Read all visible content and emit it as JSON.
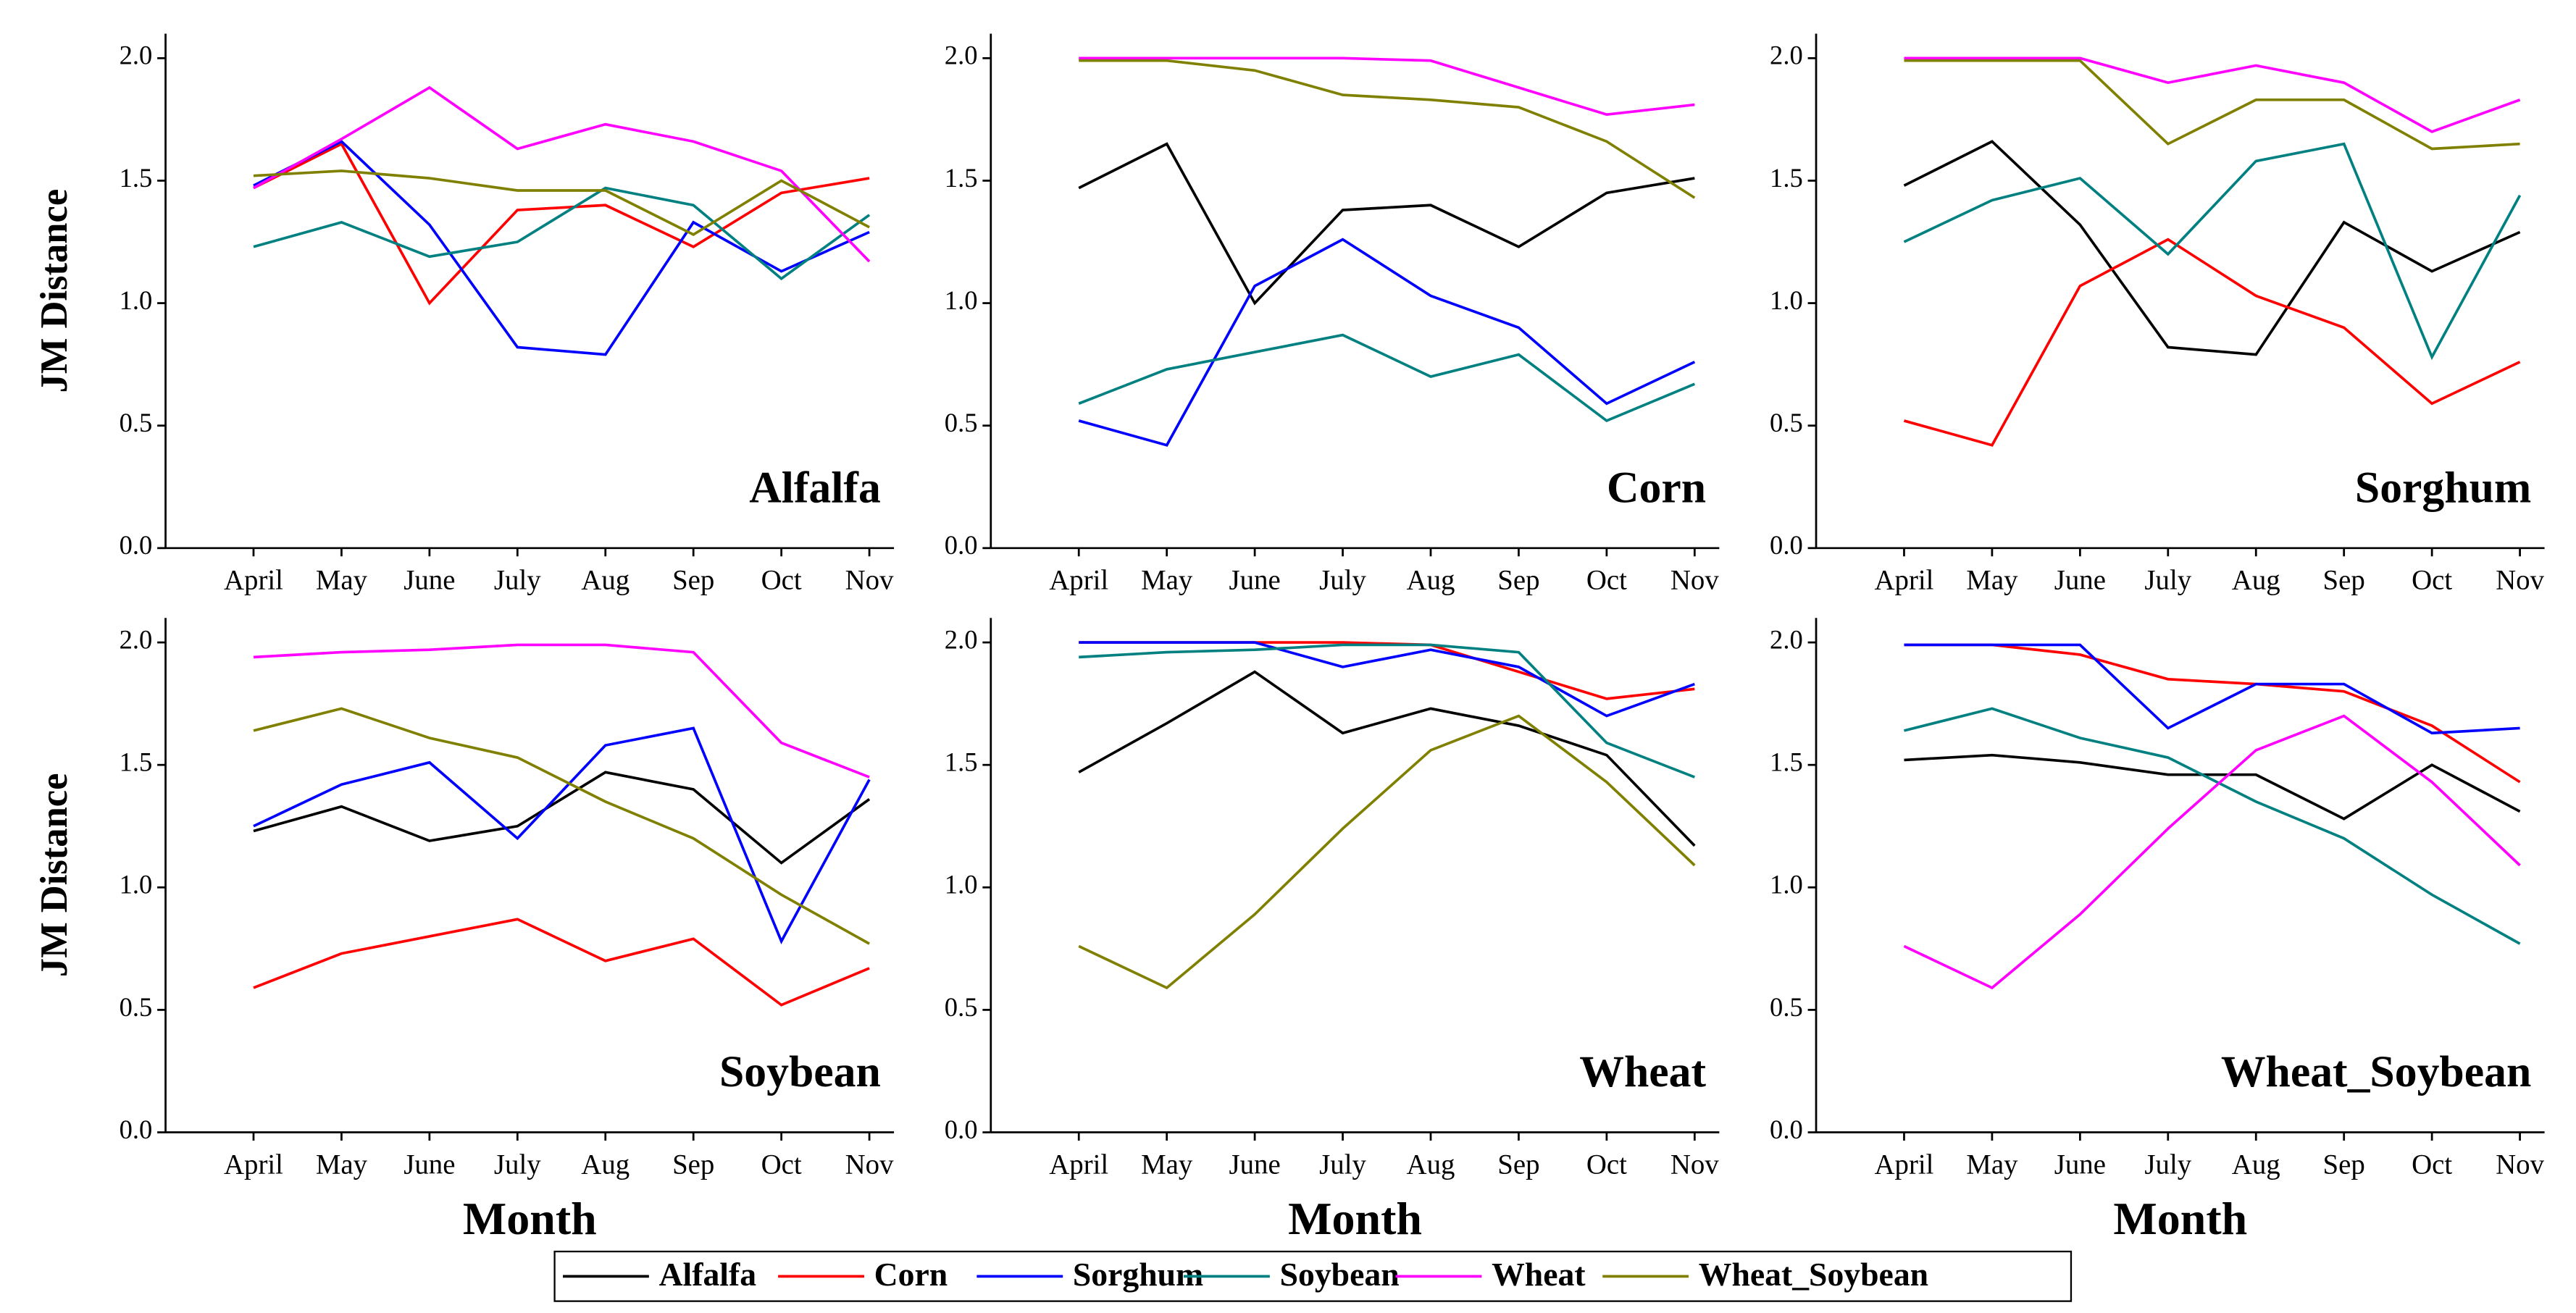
{
  "chart_data": [
    {
      "type": "line",
      "title": "Alfalfa",
      "ylabel": "JM Distance",
      "categories": [
        "April",
        "May",
        "June",
        "July",
        "Aug",
        "Sep",
        "Oct",
        "Nov"
      ],
      "ylim": [
        0,
        2.1
      ],
      "yticks": [
        {
          "value": 0,
          "label": "0.0"
        },
        {
          "value": 0.5,
          "label": "0.5"
        },
        {
          "value": 1,
          "label": "1.0"
        },
        {
          "value": 1.5,
          "label": "1.5"
        },
        {
          "value": 2,
          "label": "2.0"
        }
      ],
      "series": [
        {
          "name": "Corn",
          "color": "#ff0000",
          "values": [
            1.47,
            1.65,
            1.0,
            1.38,
            1.4,
            1.23,
            1.45,
            1.51
          ]
        },
        {
          "name": "Sorghum",
          "color": "#0000ff",
          "values": [
            1.48,
            1.66,
            1.32,
            0.82,
            0.79,
            1.33,
            1.13,
            1.29
          ]
        },
        {
          "name": "Soybean",
          "color": "#008080",
          "values": [
            1.23,
            1.33,
            1.19,
            1.25,
            1.47,
            1.4,
            1.1,
            1.36
          ]
        },
        {
          "name": "Wheat",
          "color": "#ff00ff",
          "values": [
            1.47,
            1.67,
            1.88,
            1.63,
            1.73,
            1.66,
            1.54,
            1.17
          ]
        },
        {
          "name": "Wheat_Soybean",
          "color": "#808000",
          "values": [
            1.52,
            1.54,
            1.51,
            1.46,
            1.46,
            1.28,
            1.5,
            1.31
          ]
        }
      ]
    },
    {
      "type": "line",
      "title": "Corn",
      "categories": [
        "April",
        "May",
        "June",
        "July",
        "Aug",
        "Sep",
        "Oct",
        "Nov"
      ],
      "ylim": [
        0,
        2.1
      ],
      "yticks": [
        {
          "value": 0,
          "label": "0.0"
        },
        {
          "value": 0.5,
          "label": "0.5"
        },
        {
          "value": 1,
          "label": "1.0"
        },
        {
          "value": 1.5,
          "label": "1.5"
        },
        {
          "value": 2,
          "label": "2.0"
        }
      ],
      "series": [
        {
          "name": "Alfalfa",
          "color": "#000000",
          "values": [
            1.47,
            1.65,
            1.0,
            1.38,
            1.4,
            1.23,
            1.45,
            1.51
          ]
        },
        {
          "name": "Sorghum",
          "color": "#0000ff",
          "values": [
            0.52,
            0.42,
            1.07,
            1.26,
            1.03,
            0.9,
            0.59,
            0.76
          ]
        },
        {
          "name": "Soybean",
          "color": "#008080",
          "values": [
            0.59,
            0.73,
            0.8,
            0.87,
            0.7,
            0.79,
            0.52,
            0.67
          ]
        },
        {
          "name": "Wheat",
          "color": "#ff00ff",
          "values": [
            2.0,
            2.0,
            2.0,
            2.0,
            1.99,
            1.88,
            1.77,
            1.81
          ]
        },
        {
          "name": "Wheat_Soybean",
          "color": "#808000",
          "values": [
            1.99,
            1.99,
            1.95,
            1.85,
            1.83,
            1.8,
            1.66,
            1.43
          ]
        }
      ]
    },
    {
      "type": "line",
      "title": "Sorghum",
      "categories": [
        "April",
        "May",
        "June",
        "July",
        "Aug",
        "Sep",
        "Oct",
        "Nov"
      ],
      "ylim": [
        0,
        2.1
      ],
      "yticks": [
        {
          "value": 0,
          "label": "0.0"
        },
        {
          "value": 0.5,
          "label": "0.5"
        },
        {
          "value": 1,
          "label": "1.0"
        },
        {
          "value": 1.5,
          "label": "1.5"
        },
        {
          "value": 2,
          "label": "2.0"
        }
      ],
      "series": [
        {
          "name": "Alfalfa",
          "color": "#000000",
          "values": [
            1.48,
            1.66,
            1.32,
            0.82,
            0.79,
            1.33,
            1.13,
            1.29
          ]
        },
        {
          "name": "Corn",
          "color": "#ff0000",
          "values": [
            0.52,
            0.42,
            1.07,
            1.26,
            1.03,
            0.9,
            0.59,
            0.76
          ]
        },
        {
          "name": "Soybean",
          "color": "#008080",
          "values": [
            1.25,
            1.42,
            1.51,
            1.2,
            1.58,
            1.65,
            0.78,
            1.44
          ]
        },
        {
          "name": "Wheat",
          "color": "#ff00ff",
          "values": [
            2.0,
            2.0,
            2.0,
            1.9,
            1.97,
            1.9,
            1.7,
            1.83
          ]
        },
        {
          "name": "Wheat_Soybean",
          "color": "#808000",
          "values": [
            1.99,
            1.99,
            1.99,
            1.65,
            1.83,
            1.83,
            1.63,
            1.65
          ]
        }
      ]
    },
    {
      "type": "line",
      "title": "Soybean",
      "ylabel": "JM Distance",
      "xlabel": "Month",
      "categories": [
        "April",
        "May",
        "June",
        "July",
        "Aug",
        "Sep",
        "Oct",
        "Nov"
      ],
      "ylim": [
        0,
        2.1
      ],
      "yticks": [
        {
          "value": 0,
          "label": "0.0"
        },
        {
          "value": 0.5,
          "label": "0.5"
        },
        {
          "value": 1,
          "label": "1.0"
        },
        {
          "value": 1.5,
          "label": "1.5"
        },
        {
          "value": 2,
          "label": "2.0"
        }
      ],
      "series": [
        {
          "name": "Alfalfa",
          "color": "#000000",
          "values": [
            1.23,
            1.33,
            1.19,
            1.25,
            1.47,
            1.4,
            1.1,
            1.36
          ]
        },
        {
          "name": "Corn",
          "color": "#ff0000",
          "values": [
            0.59,
            0.73,
            0.8,
            0.87,
            0.7,
            0.79,
            0.52,
            0.67
          ]
        },
        {
          "name": "Sorghum",
          "color": "#0000ff",
          "values": [
            1.25,
            1.42,
            1.51,
            1.2,
            1.58,
            1.65,
            0.78,
            1.44
          ]
        },
        {
          "name": "Wheat",
          "color": "#ff00ff",
          "values": [
            1.94,
            1.96,
            1.97,
            1.99,
            1.99,
            1.96,
            1.59,
            1.45
          ]
        },
        {
          "name": "Wheat_Soybean",
          "color": "#808000",
          "values": [
            1.64,
            1.73,
            1.61,
            1.53,
            1.35,
            1.2,
            0.97,
            0.77
          ]
        }
      ]
    },
    {
      "type": "line",
      "title": "Wheat",
      "xlabel": "Month",
      "categories": [
        "April",
        "May",
        "June",
        "July",
        "Aug",
        "Sep",
        "Oct",
        "Nov"
      ],
      "ylim": [
        0,
        2.1
      ],
      "yticks": [
        {
          "value": 0,
          "label": "0.0"
        },
        {
          "value": 0.5,
          "label": "0.5"
        },
        {
          "value": 1,
          "label": "1.0"
        },
        {
          "value": 1.5,
          "label": "1.5"
        },
        {
          "value": 2,
          "label": "2.0"
        }
      ],
      "series": [
        {
          "name": "Alfalfa",
          "color": "#000000",
          "values": [
            1.47,
            1.67,
            1.88,
            1.63,
            1.73,
            1.66,
            1.54,
            1.17
          ]
        },
        {
          "name": "Corn",
          "color": "#ff0000",
          "values": [
            2.0,
            2.0,
            2.0,
            2.0,
            1.99,
            1.88,
            1.77,
            1.81
          ]
        },
        {
          "name": "Sorghum",
          "color": "#0000ff",
          "values": [
            2.0,
            2.0,
            2.0,
            1.9,
            1.97,
            1.9,
            1.7,
            1.83
          ]
        },
        {
          "name": "Soybean",
          "color": "#008080",
          "values": [
            1.94,
            1.96,
            1.97,
            1.99,
            1.99,
            1.96,
            1.59,
            1.45
          ]
        },
        {
          "name": "Wheat_Soybean",
          "color": "#808000",
          "values": [
            0.76,
            0.59,
            0.89,
            1.24,
            1.56,
            1.7,
            1.43,
            1.09
          ]
        }
      ]
    },
    {
      "type": "line",
      "title": "Wheat_Soybean",
      "xlabel": "Month",
      "categories": [
        "April",
        "May",
        "June",
        "July",
        "Aug",
        "Sep",
        "Oct",
        "Nov"
      ],
      "ylim": [
        0,
        2.1
      ],
      "yticks": [
        {
          "value": 0,
          "label": "0.0"
        },
        {
          "value": 0.5,
          "label": "0.5"
        },
        {
          "value": 1,
          "label": "1.0"
        },
        {
          "value": 1.5,
          "label": "1.5"
        },
        {
          "value": 2,
          "label": "2.0"
        }
      ],
      "series": [
        {
          "name": "Alfalfa",
          "color": "#000000",
          "values": [
            1.52,
            1.54,
            1.51,
            1.46,
            1.46,
            1.28,
            1.5,
            1.31
          ]
        },
        {
          "name": "Corn",
          "color": "#ff0000",
          "values": [
            1.99,
            1.99,
            1.95,
            1.85,
            1.83,
            1.8,
            1.66,
            1.43
          ]
        },
        {
          "name": "Sorghum",
          "color": "#0000ff",
          "values": [
            1.99,
            1.99,
            1.99,
            1.65,
            1.83,
            1.83,
            1.63,
            1.65
          ]
        },
        {
          "name": "Soybean",
          "color": "#008080",
          "values": [
            1.64,
            1.73,
            1.61,
            1.53,
            1.35,
            1.2,
            0.97,
            0.77
          ]
        },
        {
          "name": "Wheat",
          "color": "#ff00ff",
          "values": [
            0.76,
            0.59,
            0.89,
            1.24,
            1.56,
            1.7,
            1.43,
            1.09
          ]
        }
      ]
    }
  ],
  "legend": [
    {
      "name": "Alfalfa",
      "color": "#000000"
    },
    {
      "name": "Corn",
      "color": "#ff0000"
    },
    {
      "name": "Sorghum",
      "color": "#0000ff"
    },
    {
      "name": "Soybean",
      "color": "#008080"
    },
    {
      "name": "Wheat",
      "color": "#ff00ff"
    },
    {
      "name": "Wheat_Soybean",
      "color": "#808000"
    }
  ]
}
